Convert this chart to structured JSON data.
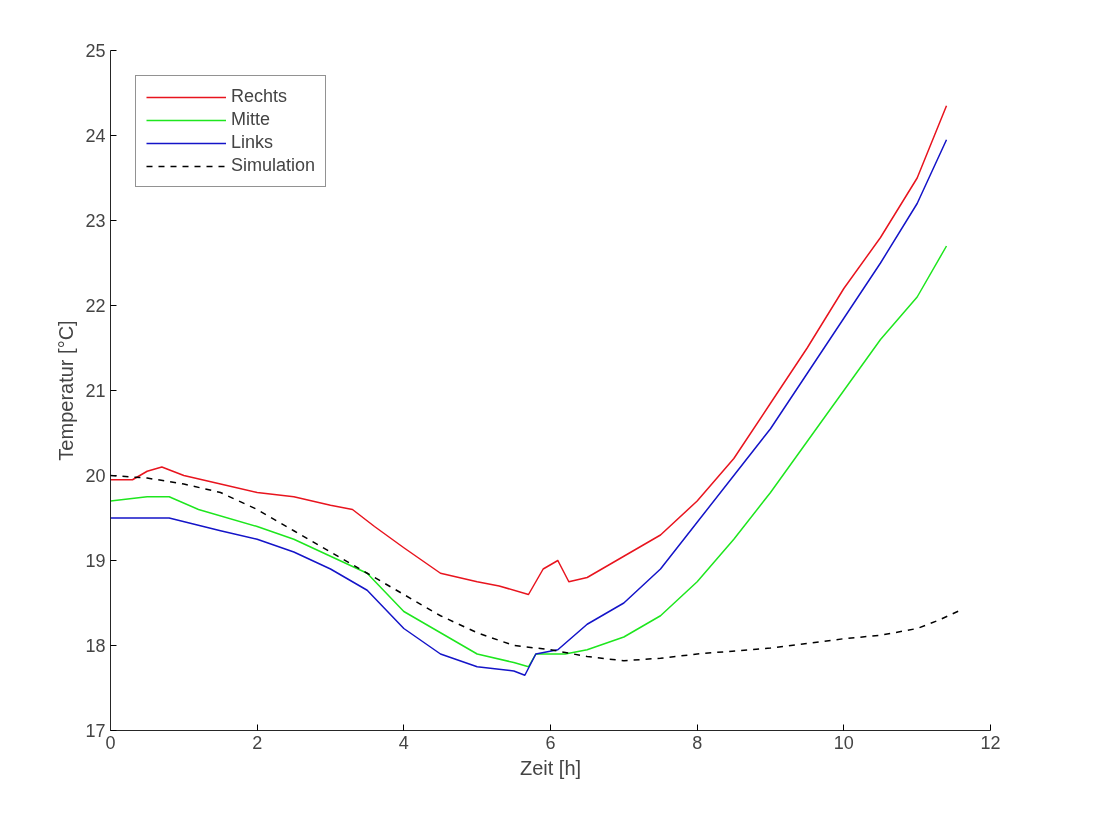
{
  "chart_data": {
    "type": "line",
    "xlabel": "Zeit [h]",
    "ylabel": "Temperatur [°C]",
    "xlim": [
      0,
      12
    ],
    "xticks": [
      0,
      2,
      4,
      6,
      8,
      10,
      12
    ],
    "ylim": [
      17,
      25
    ],
    "yticks": [
      17,
      18,
      19,
      20,
      21,
      22,
      23,
      24,
      25
    ],
    "grid": false,
    "legend": "top left",
    "marker": "none",
    "series": [
      {
        "name": "Rechts",
        "color": "#e8141e",
        "line_style": "solid",
        "x": [
          0,
          0.3,
          0.5,
          0.7,
          1.0,
          1.5,
          2,
          2.5,
          3,
          3.3,
          3.6,
          4,
          4.5,
          5,
          5.3,
          5.7,
          5.9,
          6.1,
          6.25,
          6.5,
          7,
          7.5,
          8,
          8.5,
          9,
          9.5,
          10,
          10.5,
          11,
          11.4
        ],
        "values": [
          19.95,
          19.95,
          20.05,
          20.1,
          20.0,
          19.9,
          19.8,
          19.75,
          19.65,
          19.6,
          19.4,
          19.15,
          18.85,
          18.75,
          18.7,
          18.6,
          18.9,
          19.0,
          18.75,
          18.8,
          19.05,
          19.3,
          19.7,
          20.2,
          20.85,
          21.5,
          22.2,
          22.8,
          23.5,
          24.35
        ]
      },
      {
        "name": "Mitte",
        "color": "#1ee61e",
        "line_style": "solid",
        "x": [
          0,
          0.5,
          0.8,
          1.2,
          2,
          2.5,
          3,
          3.5,
          4,
          4.5,
          5,
          5.5,
          5.7,
          5.8,
          6.2,
          6.5,
          7,
          7.5,
          8,
          8.5,
          9,
          9.5,
          10,
          10.5,
          11,
          11.4
        ],
        "values": [
          19.7,
          19.75,
          19.75,
          19.6,
          19.4,
          19.25,
          19.05,
          18.85,
          18.4,
          18.15,
          17.9,
          17.8,
          17.75,
          17.9,
          17.9,
          17.95,
          18.1,
          18.35,
          18.75,
          19.25,
          19.8,
          20.4,
          21.0,
          21.6,
          22.1,
          22.7
        ]
      },
      {
        "name": "Links",
        "color": "#1414c8",
        "line_style": "solid",
        "x": [
          0,
          0.5,
          0.8,
          1.5,
          2,
          2.5,
          3,
          3.5,
          4,
          4.5,
          5,
          5.5,
          5.65,
          5.8,
          6.1,
          6.5,
          7,
          7.5,
          8,
          8.5,
          9,
          9.5,
          10,
          10.5,
          11,
          11.4
        ],
        "values": [
          19.5,
          19.5,
          19.5,
          19.35,
          19.25,
          19.1,
          18.9,
          18.65,
          18.2,
          17.9,
          17.75,
          17.7,
          17.65,
          17.9,
          17.95,
          18.25,
          18.5,
          18.9,
          19.45,
          20.0,
          20.55,
          21.2,
          21.85,
          22.5,
          23.2,
          23.95
        ]
      },
      {
        "name": "Simulation",
        "color": "#000000",
        "line_style": "dashed",
        "x": [
          0,
          0.5,
          1,
          1.5,
          2,
          2.5,
          3,
          3.5,
          4,
          4.5,
          5,
          5.5,
          6,
          6.5,
          7,
          7.5,
          8,
          9,
          10,
          10.5,
          11,
          11.3,
          11.6
        ],
        "values": [
          20.0,
          19.97,
          19.9,
          19.8,
          19.6,
          19.35,
          19.1,
          18.85,
          18.6,
          18.35,
          18.15,
          18.0,
          17.95,
          17.87,
          17.82,
          17.85,
          17.9,
          17.97,
          18.08,
          18.12,
          18.2,
          18.3,
          18.42
        ]
      }
    ]
  }
}
